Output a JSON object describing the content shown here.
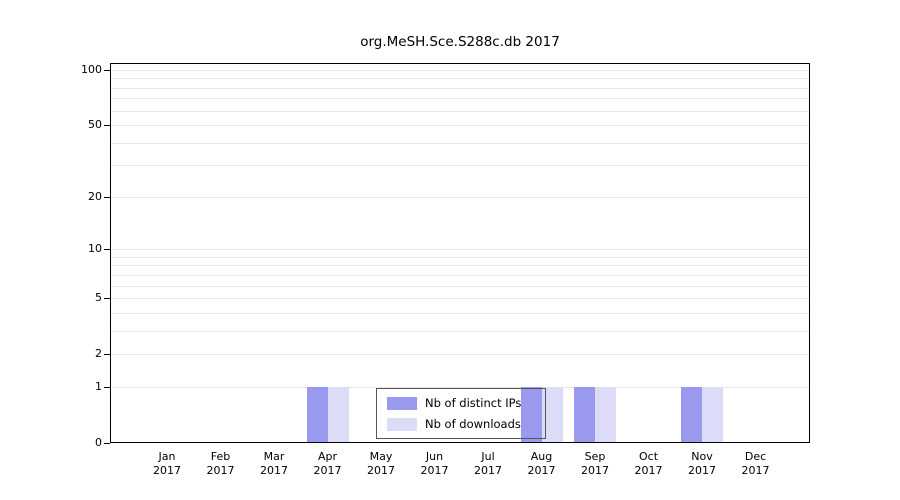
{
  "chart_data": {
    "type": "bar",
    "title": "org.MeSH.Sce.S288c.db 2017",
    "categories": [
      "Jan",
      "Feb",
      "Mar",
      "Apr",
      "May",
      "Jun",
      "Jul",
      "Aug",
      "Sep",
      "Oct",
      "Nov",
      "Dec"
    ],
    "x_year": "2017",
    "series": [
      {
        "name": "Nb of distinct IPs",
        "color": "#9999ee",
        "values": [
          0,
          0,
          0,
          1,
          0,
          0,
          0,
          1,
          1,
          0,
          1,
          0
        ]
      },
      {
        "name": "Nb of downloads",
        "color": "#dcdcf8",
        "values": [
          0,
          0,
          0,
          1,
          0,
          0,
          0,
          1,
          1,
          0,
          1,
          0
        ]
      }
    ],
    "yticks": [
      0,
      1,
      2,
      5,
      10,
      20,
      50,
      100
    ],
    "ylim": [
      0,
      100
    ],
    "yscale": "log1p",
    "gridlines": [
      1,
      2,
      3,
      4,
      5,
      6,
      7,
      8,
      9,
      10,
      20,
      30,
      40,
      50,
      60,
      70,
      80,
      90,
      100
    ],
    "grid_color": "#e7e7e7",
    "axis_color": "#000000",
    "legend_position": "inside-bottom-center",
    "legend_transparent": true
  }
}
